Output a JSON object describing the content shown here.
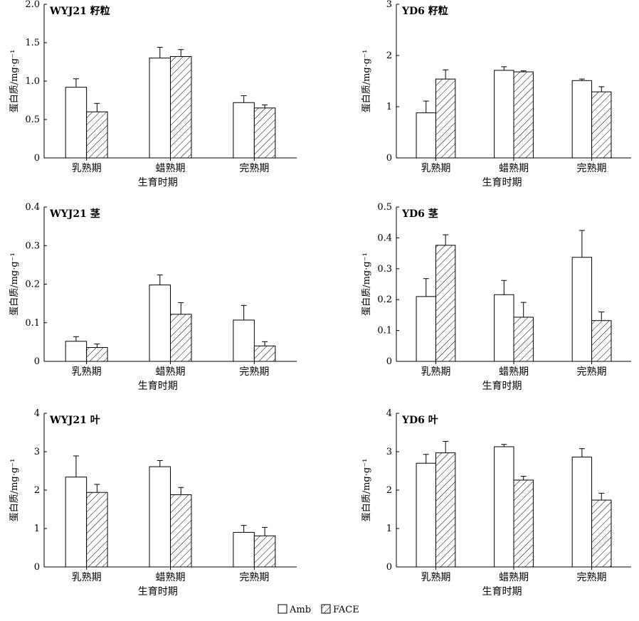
{
  "legend": {
    "amb_label": "Amb",
    "face_label": "FACE"
  },
  "chart_data": [
    {
      "type": "bar",
      "title": "WYJ21 籽粒",
      "ylabel": "蛋白质/mg·g⁻¹",
      "xlabel": "生育时期",
      "categories": [
        "乳熟期",
        "蜡熟期",
        "完熟期"
      ],
      "ylim": [
        0,
        2.0
      ],
      "yticks": [
        "0",
        "0.5",
        "1.0",
        "1.5",
        "2.0"
      ],
      "ytick_values": [
        0,
        0.5,
        1.0,
        1.5,
        2.0
      ],
      "series": [
        {
          "name": "Amb",
          "values": [
            0.92,
            1.3,
            0.72
          ],
          "errors": [
            0.11,
            0.14,
            0.09
          ]
        },
        {
          "name": "FACE",
          "values": [
            0.6,
            1.32,
            0.65
          ],
          "errors": [
            0.11,
            0.09,
            0.04
          ]
        }
      ]
    },
    {
      "type": "bar",
      "title": "YD6 籽粒",
      "ylabel": "蛋白质/mg·g⁻¹",
      "xlabel": "生育时期",
      "categories": [
        "乳熟期",
        "蜡熟期",
        "完熟期"
      ],
      "ylim": [
        0,
        3
      ],
      "yticks": [
        "0",
        "1",
        "2",
        "3"
      ],
      "ytick_values": [
        0,
        1,
        2,
        3
      ],
      "series": [
        {
          "name": "Amb",
          "values": [
            0.88,
            1.71,
            1.51
          ],
          "errors": [
            0.23,
            0.07,
            0.03
          ]
        },
        {
          "name": "FACE",
          "values": [
            1.54,
            1.68,
            1.29
          ],
          "errors": [
            0.18,
            0.02,
            0.1
          ]
        }
      ]
    },
    {
      "type": "bar",
      "title": "WYJ21 茎",
      "ylabel": "蛋白质/mg·g⁻¹",
      "xlabel": "生育时期",
      "categories": [
        "乳熟期",
        "蜡熟期",
        "完熟期"
      ],
      "ylim": [
        0,
        0.4
      ],
      "yticks": [
        "0",
        "0.1",
        "0.2",
        "0.3",
        "0.4"
      ],
      "ytick_values": [
        0,
        0.1,
        0.2,
        0.3,
        0.4
      ],
      "series": [
        {
          "name": "Amb",
          "values": [
            0.052,
            0.198,
            0.107
          ],
          "errors": [
            0.012,
            0.026,
            0.038
          ]
        },
        {
          "name": "FACE",
          "values": [
            0.036,
            0.122,
            0.04
          ],
          "errors": [
            0.009,
            0.03,
            0.011
          ]
        }
      ]
    },
    {
      "type": "bar",
      "title": "YD6 茎",
      "ylabel": "蛋白质/mg·g⁻¹",
      "xlabel": "生育时期",
      "categories": [
        "乳熟期",
        "蜡熟期",
        "完熟期"
      ],
      "ylim": [
        0,
        0.5
      ],
      "yticks": [
        "0",
        "0.1",
        "0.2",
        "0.3",
        "0.4",
        "0.5"
      ],
      "ytick_values": [
        0,
        0.1,
        0.2,
        0.3,
        0.4,
        0.5
      ],
      "series": [
        {
          "name": "Amb",
          "values": [
            0.21,
            0.216,
            0.337
          ],
          "errors": [
            0.058,
            0.046,
            0.087
          ]
        },
        {
          "name": "FACE",
          "values": [
            0.376,
            0.143,
            0.132
          ],
          "errors": [
            0.034,
            0.048,
            0.028
          ]
        }
      ]
    },
    {
      "type": "bar",
      "title": "WYJ21 叶",
      "ylabel": "蛋白质/mg·g⁻¹",
      "xlabel": "生育时期",
      "categories": [
        "乳熟期",
        "蜡熟期",
        "完熟期"
      ],
      "ylim": [
        0,
        4
      ],
      "yticks": [
        "0",
        "1",
        "2",
        "3",
        "4"
      ],
      "ytick_values": [
        0,
        1,
        2,
        3,
        4
      ],
      "series": [
        {
          "name": "Amb",
          "values": [
            2.34,
            2.61,
            0.9
          ],
          "errors": [
            0.55,
            0.16,
            0.18
          ]
        },
        {
          "name": "FACE",
          "values": [
            1.94,
            1.88,
            0.81
          ],
          "errors": [
            0.21,
            0.19,
            0.22
          ]
        }
      ]
    },
    {
      "type": "bar",
      "title": "YD6 叶",
      "ylabel": "蛋白质/mg·g⁻¹",
      "xlabel": "生育时期",
      "categories": [
        "乳熟期",
        "蜡熟期",
        "完熟期"
      ],
      "ylim": [
        0,
        4
      ],
      "yticks": [
        "0",
        "1",
        "2",
        "3",
        "4"
      ],
      "ytick_values": [
        0,
        1,
        2,
        3,
        4
      ],
      "series": [
        {
          "name": "Amb",
          "values": [
            2.7,
            3.13,
            2.86
          ],
          "errors": [
            0.23,
            0.06,
            0.22
          ]
        },
        {
          "name": "FACE",
          "values": [
            2.97,
            2.26,
            1.74
          ],
          "errors": [
            0.3,
            0.1,
            0.18
          ]
        }
      ]
    }
  ]
}
